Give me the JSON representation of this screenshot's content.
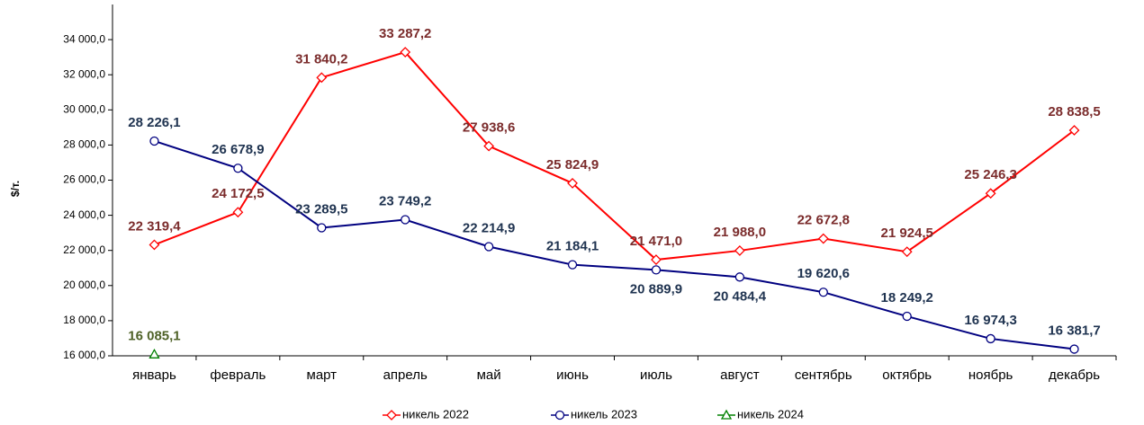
{
  "chart_data": {
    "type": "line",
    "y_label": "$/т.",
    "categories": [
      "январь",
      "февраль",
      "март",
      "апрель",
      "май",
      "июнь",
      "июль",
      "август",
      "сентябрь",
      "октябрь",
      "ноябрь",
      "декабрь"
    ],
    "series": [
      {
        "name": "никель 2022",
        "color": "#ff0000",
        "label_color": "#7b2c2c",
        "marker": "diamond",
        "values": [
          22319.4,
          24172.5,
          31840.2,
          33287.2,
          27938.6,
          25824.9,
          21471.0,
          21988.0,
          22672.8,
          21924.5,
          25246.3,
          28838.5
        ],
        "value_labels": [
          "22 319,4",
          "24 172,5",
          "31 840,2",
          "33 287,2",
          "27 938,6",
          "25 824,9",
          "21 471,0",
          "21 988,0",
          "22 672,8",
          "21 924,5",
          "25 246,3",
          "28 838,5"
        ]
      },
      {
        "name": "никель 2023",
        "color": "#000080",
        "label_color": "#1f3350",
        "marker": "circle",
        "values": [
          28226.1,
          26678.9,
          23289.5,
          23749.2,
          22214.9,
          21184.1,
          20889.9,
          20484.4,
          19620.6,
          18249.2,
          16974.3,
          16381.7
        ],
        "value_labels": [
          "28 226,1",
          "26 678,9",
          "23 289,5",
          "23 749,2",
          "22 214,9",
          "21 184,1",
          "20 889,9",
          "20 484,4",
          "19 620,6",
          "18 249,2",
          "16 974,3",
          "16 381,7"
        ]
      },
      {
        "name": "никель 2024",
        "color": "#008000",
        "label_color": "#4f6228",
        "marker": "triangle",
        "values": [
          16085.1,
          null,
          null,
          null,
          null,
          null,
          null,
          null,
          null,
          null,
          null,
          null
        ],
        "value_labels": [
          "16 085,1",
          null,
          null,
          null,
          null,
          null,
          null,
          null,
          null,
          null,
          null,
          null
        ]
      }
    ],
    "ylim": [
      16000,
      36000
    ],
    "yticks": [
      {
        "value": 16000,
        "label": "16 000,0"
      },
      {
        "value": 18000,
        "label": "18 000,0"
      },
      {
        "value": 20000,
        "label": "20 000,0"
      },
      {
        "value": 22000,
        "label": "22 000,0"
      },
      {
        "value": 24000,
        "label": "24 000,0"
      },
      {
        "value": 26000,
        "label": "26 000,0"
      },
      {
        "value": 28000,
        "label": "28 000,0"
      },
      {
        "value": 30000,
        "label": "30 000,0"
      },
      {
        "value": 32000,
        "label": "32 000,0"
      },
      {
        "value": 34000,
        "label": "34 000,0"
      }
    ],
    "grid": false,
    "legend": "bottom"
  }
}
